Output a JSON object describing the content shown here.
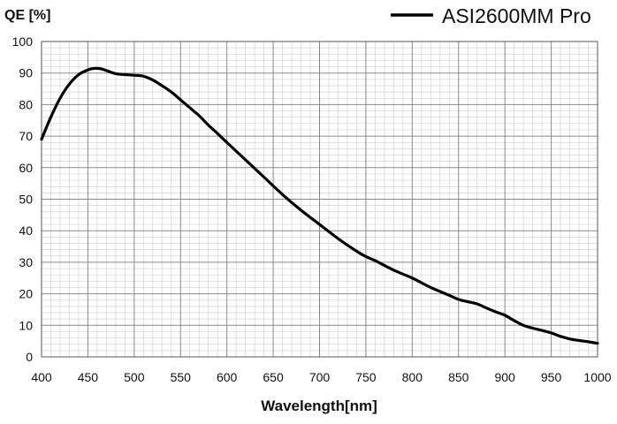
{
  "chart_data": {
    "type": "line",
    "title": "",
    "ylabel": "QE [%]",
    "xlabel": "Wavelength[nm]",
    "xlim": [
      400,
      1000
    ],
    "ylim": [
      0,
      100
    ],
    "x_ticks": [
      400,
      450,
      500,
      550,
      600,
      650,
      700,
      750,
      800,
      850,
      900,
      950,
      1000
    ],
    "y_ticks": [
      0,
      10,
      20,
      30,
      40,
      50,
      60,
      70,
      80,
      90,
      100
    ],
    "grid": true,
    "minor_grid": true,
    "legend_position": "top-right",
    "series": [
      {
        "name": "ASI2600MM Pro",
        "color": "#000000",
        "x": [
          400,
          410,
          420,
          430,
          440,
          450,
          455,
          460,
          465,
          470,
          480,
          490,
          500,
          510,
          520,
          530,
          540,
          550,
          560,
          570,
          580,
          590,
          600,
          620,
          640,
          660,
          680,
          700,
          720,
          740,
          750,
          760,
          780,
          800,
          820,
          840,
          850,
          860,
          870,
          880,
          890,
          900,
          910,
          920,
          930,
          940,
          950,
          960,
          970,
          980,
          990,
          1000
        ],
        "y": [
          69,
          76,
          82,
          86.5,
          89.5,
          91,
          91.4,
          91.5,
          91.3,
          90.8,
          89.8,
          89.5,
          89.3,
          89,
          87.8,
          86,
          84,
          81.5,
          79,
          76.5,
          73.5,
          70.8,
          68,
          62.5,
          57,
          51.5,
          46.5,
          42,
          37.5,
          33.5,
          31.8,
          30.5,
          27.5,
          25,
          22,
          19.5,
          18.2,
          17.5,
          16.8,
          15.5,
          14.3,
          13.2,
          11.5,
          10,
          9.1,
          8.4,
          7.6,
          6.5,
          5.7,
          5.2,
          4.8,
          4.3
        ]
      }
    ]
  }
}
